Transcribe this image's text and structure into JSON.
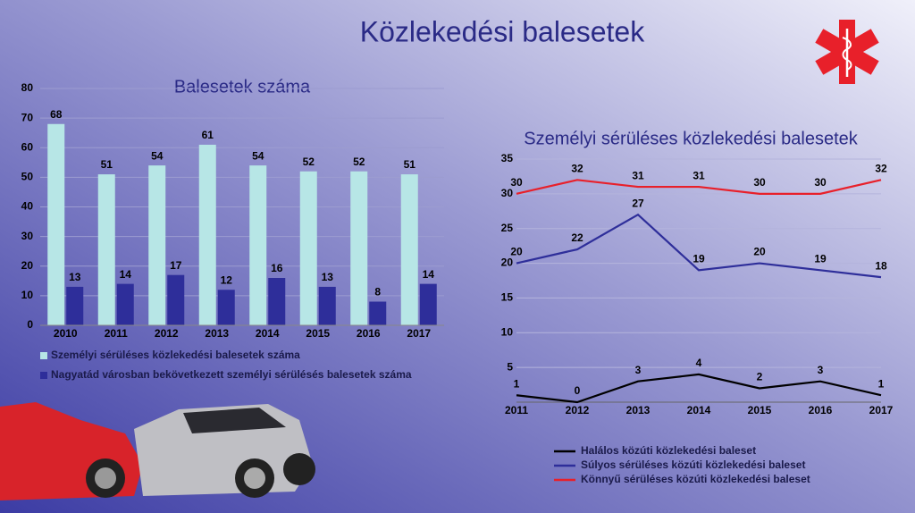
{
  "title": "Közlekedési balesetek",
  "chart_data": [
    {
      "type": "bar",
      "title": "Balesetek száma",
      "categories": [
        "2010",
        "2011",
        "2012",
        "2013",
        "2014",
        "2015",
        "2016",
        "2017"
      ],
      "series": [
        {
          "name": "Személyi sérüléses közlekedési balesetek száma",
          "color": "#b7e6e6",
          "values": [
            68,
            51,
            54,
            61,
            54,
            52,
            52,
            51
          ]
        },
        {
          "name": "Nagyatád városban bekövetkezett személyi sérülésés balesetek száma",
          "color": "#2e2e9a",
          "values": [
            13,
            14,
            17,
            12,
            16,
            13,
            8,
            14
          ]
        }
      ],
      "ylim": [
        0,
        80
      ],
      "yticks": [
        0,
        10,
        20,
        30,
        40,
        50,
        60,
        70,
        80
      ],
      "grid": true
    },
    {
      "type": "line",
      "title": "Személyi sérüléses közlekedési balesetek",
      "categories": [
        "2011",
        "2012",
        "2013",
        "2014",
        "2015",
        "2016",
        "2017"
      ],
      "series": [
        {
          "name": "Halálos közúti közlekedési baleset",
          "color": "#000000",
          "values": [
            1,
            0,
            3,
            4,
            2,
            3,
            1
          ]
        },
        {
          "name": "Súlyos sérüléses közúti közlekedési baleset",
          "color": "#2e2e9a",
          "values": [
            20,
            22,
            27,
            19,
            20,
            19,
            18
          ]
        },
        {
          "name": "Könnyű sérüléses közúti közlekedési baleset",
          "color": "#e8202a",
          "values": [
            30,
            32,
            31,
            31,
            30,
            30,
            32
          ]
        }
      ],
      "ylim": [
        0,
        35
      ],
      "yticks": [
        5,
        10,
        15,
        20,
        25,
        30,
        35
      ],
      "grid": true
    }
  ]
}
